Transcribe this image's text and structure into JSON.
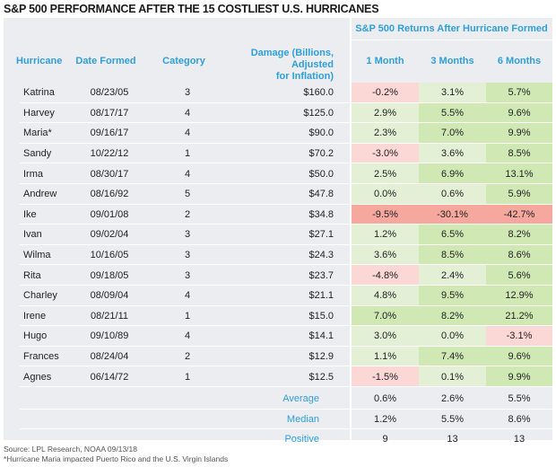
{
  "title": "S&P 500 PERFORMANCE AFTER THE 15 COSTLIEST U.S. HURRICANES",
  "chart_data": {
    "type": "table",
    "group_header": "S&P 500 Returns After Hurricane Formed",
    "columns": [
      "Hurricane",
      "Date Formed",
      "Category",
      "Damage (Billions, Adjusted for Inflation)",
      "1 Month",
      "3 Months",
      "6 Months"
    ],
    "damage_header_lines": [
      "Damage (Billions,",
      "Adjusted",
      "for Inflation)"
    ],
    "rows": [
      {
        "hurricane": "Katrina",
        "date": "08/23/05",
        "category": "3",
        "damage": "$160.0",
        "m1": "-0.2%",
        "m3": "3.1%",
        "m6": "5.7%"
      },
      {
        "hurricane": "Harvey",
        "date": "08/17/17",
        "category": "4",
        "damage": "$125.0",
        "m1": "2.9%",
        "m3": "5.5%",
        "m6": "9.6%"
      },
      {
        "hurricane": "Maria*",
        "date": "09/16/17",
        "category": "4",
        "damage": "$90.0",
        "m1": "2.3%",
        "m3": "7.0%",
        "m6": "9.9%"
      },
      {
        "hurricane": "Sandy",
        "date": "10/22/12",
        "category": "1",
        "damage": "$70.2",
        "m1": "-3.0%",
        "m3": "3.6%",
        "m6": "8.5%"
      },
      {
        "hurricane": "Irma",
        "date": "08/30/17",
        "category": "4",
        "damage": "$50.0",
        "m1": "2.5%",
        "m3": "6.9%",
        "m6": "13.1%"
      },
      {
        "hurricane": "Andrew",
        "date": "08/16/92",
        "category": "5",
        "damage": "$47.8",
        "m1": "0.0%",
        "m3": "0.6%",
        "m6": "5.9%"
      },
      {
        "hurricane": "Ike",
        "date": "09/01/08",
        "category": "2",
        "damage": "$34.8",
        "m1": "-9.5%",
        "m3": "-30.1%",
        "m6": "-42.7%"
      },
      {
        "hurricane": "Ivan",
        "date": "09/02/04",
        "category": "3",
        "damage": "$27.1",
        "m1": "1.2%",
        "m3": "6.5%",
        "m6": "8.2%"
      },
      {
        "hurricane": "Wilma",
        "date": "10/16/05",
        "category": "3",
        "damage": "$24.3",
        "m1": "3.6%",
        "m3": "8.5%",
        "m6": "8.6%"
      },
      {
        "hurricane": "Rita",
        "date": "09/18/05",
        "category": "3",
        "damage": "$23.7",
        "m1": "-4.8%",
        "m3": "2.4%",
        "m6": "5.6%"
      },
      {
        "hurricane": "Charley",
        "date": "08/09/04",
        "category": "4",
        "damage": "$21.1",
        "m1": "4.8%",
        "m3": "9.5%",
        "m6": "12.9%"
      },
      {
        "hurricane": "Irene",
        "date": "08/21/11",
        "category": "1",
        "damage": "$15.0",
        "m1": "7.0%",
        "m3": "8.2%",
        "m6": "21.2%"
      },
      {
        "hurricane": "Hugo",
        "date": "09/10/89",
        "category": "4",
        "damage": "$14.1",
        "m1": "3.0%",
        "m3": "0.0%",
        "m6": "-3.1%"
      },
      {
        "hurricane": "Frances",
        "date": "08/24/04",
        "category": "2",
        "damage": "$12.9",
        "m1": "1.1%",
        "m3": "7.4%",
        "m6": "9.6%"
      },
      {
        "hurricane": "Agnes",
        "date": "06/14/72",
        "category": "1",
        "damage": "$12.5",
        "m1": "-1.5%",
        "m3": "0.1%",
        "m6": "9.9%"
      }
    ],
    "summary": [
      {
        "label": "Average",
        "m1": "0.6%",
        "m3": "2.6%",
        "m6": "5.5%"
      },
      {
        "label": "Median",
        "m1": "1.2%",
        "m3": "5.5%",
        "m6": "8.6%"
      },
      {
        "label": "Positive",
        "m1": "9",
        "m3": "13",
        "m6": "13"
      }
    ]
  },
  "colors": {
    "header_text": "#2e9fd8",
    "panel_bg": "#ecedf0",
    "pos_bg": "#cfe8b4",
    "pos_light_bg": "#e3f0d6",
    "neg_light_bg": "#fbd7d5",
    "neg_bg": "#f6a89e"
  },
  "source": "Source: LPL Research, NOAA  09/13/18",
  "footnote": "*Hurricane Maria impacted Puerto Rico and the U.S. Virgin Islands"
}
